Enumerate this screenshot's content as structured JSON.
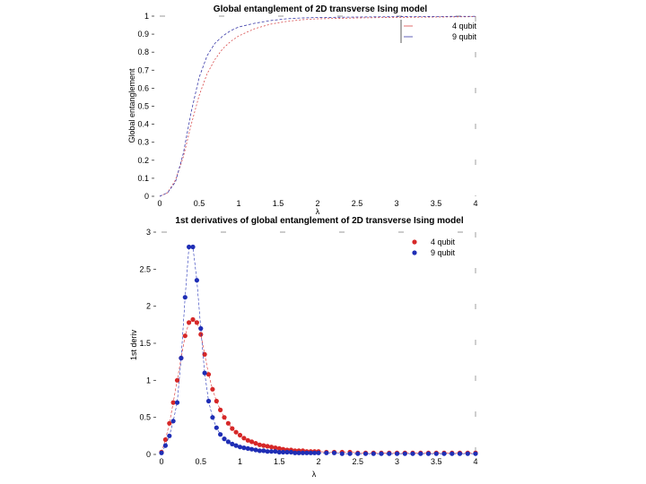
{
  "chart_data": [
    {
      "type": "line",
      "title": "Global entanglement of 2D transverse Ising model",
      "xlabel": "λ",
      "ylabel": "Global entanglement",
      "xlim": [
        0,
        4
      ],
      "ylim": [
        0,
        1
      ],
      "xticks": [
        "0",
        "0.5",
        "1",
        "1.5",
        "2",
        "2.5",
        "3",
        "3.5",
        "4"
      ],
      "yticks": [
        "0",
        "0.1",
        "0.2",
        "0.3",
        "0.4",
        "0.5",
        "0.6",
        "0.7",
        "0.8",
        "0.9",
        "1"
      ],
      "legend_position": "top-right",
      "series": [
        {
          "name": "4 qubit",
          "color": "#d84a4a",
          "x": [
            0,
            0.1,
            0.2,
            0.3,
            0.4,
            0.5,
            0.6,
            0.7,
            0.8,
            0.9,
            1.0,
            1.2,
            1.4,
            1.6,
            1.8,
            2.0,
            2.5,
            3.0,
            3.5,
            4.0
          ],
          "y": [
            0,
            0.02,
            0.09,
            0.22,
            0.4,
            0.56,
            0.68,
            0.76,
            0.82,
            0.86,
            0.89,
            0.93,
            0.955,
            0.97,
            0.98,
            0.985,
            0.99,
            0.993,
            0.995,
            0.997
          ]
        },
        {
          "name": "9 qubit",
          "color": "#3a3aa8",
          "x": [
            0,
            0.1,
            0.2,
            0.3,
            0.4,
            0.5,
            0.6,
            0.7,
            0.8,
            0.9,
            1.0,
            1.2,
            1.4,
            1.6,
            1.8,
            2.0,
            2.5,
            3.0,
            3.5,
            4.0
          ],
          "y": [
            0,
            0.02,
            0.08,
            0.24,
            0.47,
            0.66,
            0.78,
            0.85,
            0.89,
            0.92,
            0.94,
            0.96,
            0.975,
            0.985,
            0.99,
            0.992,
            0.995,
            0.997,
            0.998,
            0.999
          ]
        }
      ]
    },
    {
      "type": "scatter",
      "title": "1st derivatives of global entanglement of 2D transverse Ising model",
      "xlabel": "λ",
      "ylabel": "1st deriv",
      "xlim": [
        0,
        4
      ],
      "ylim": [
        0,
        3
      ],
      "xticks": [
        "0",
        "0.5",
        "1",
        "1.5",
        "2",
        "2.5",
        "3",
        "3.5",
        "4"
      ],
      "yticks": [
        "0",
        "0.5",
        "1",
        "1.5",
        "2",
        "2.5",
        "3"
      ],
      "legend_position": "top-right",
      "series": [
        {
          "name": "4 qubit",
          "color": "#d62828",
          "x": [
            0.0,
            0.05,
            0.1,
            0.15,
            0.2,
            0.25,
            0.3,
            0.35,
            0.4,
            0.45,
            0.5,
            0.55,
            0.6,
            0.65,
            0.7,
            0.75,
            0.8,
            0.85,
            0.9,
            0.95,
            1.0,
            1.05,
            1.1,
            1.15,
            1.2,
            1.25,
            1.3,
            1.35,
            1.4,
            1.45,
            1.5,
            1.55,
            1.6,
            1.65,
            1.7,
            1.75,
            1.8,
            1.85,
            1.9,
            1.95,
            2.0,
            2.1,
            2.2,
            2.3,
            2.4,
            2.5,
            2.6,
            2.7,
            2.8,
            2.9,
            3.0,
            3.1,
            3.2,
            3.3,
            3.4,
            3.5,
            3.6,
            3.7,
            3.8,
            3.9,
            4.0
          ],
          "y": [
            0.03,
            0.2,
            0.42,
            0.7,
            1.0,
            1.3,
            1.6,
            1.78,
            1.82,
            1.78,
            1.62,
            1.35,
            1.08,
            0.88,
            0.72,
            0.6,
            0.5,
            0.42,
            0.35,
            0.3,
            0.26,
            0.22,
            0.19,
            0.17,
            0.15,
            0.13,
            0.12,
            0.11,
            0.1,
            0.09,
            0.08,
            0.07,
            0.06,
            0.06,
            0.05,
            0.05,
            0.05,
            0.04,
            0.04,
            0.04,
            0.04,
            0.03,
            0.03,
            0.03,
            0.03,
            0.02,
            0.02,
            0.02,
            0.02,
            0.02,
            0.02,
            0.02,
            0.02,
            0.02,
            0.02,
            0.02,
            0.02,
            0.02,
            0.02,
            0.02,
            0.02
          ]
        },
        {
          "name": "9 qubit",
          "color": "#1f2eb5",
          "x": [
            0.0,
            0.05,
            0.1,
            0.15,
            0.2,
            0.25,
            0.3,
            0.35,
            0.4,
            0.45,
            0.5,
            0.55,
            0.6,
            0.65,
            0.7,
            0.75,
            0.8,
            0.85,
            0.9,
            0.95,
            1.0,
            1.05,
            1.1,
            1.15,
            1.2,
            1.25,
            1.3,
            1.35,
            1.4,
            1.45,
            1.5,
            1.55,
            1.6,
            1.65,
            1.7,
            1.75,
            1.8,
            1.85,
            1.9,
            1.95,
            2.0,
            2.1,
            2.2,
            2.3,
            2.4,
            2.5,
            2.6,
            2.7,
            2.8,
            2.9,
            3.0,
            3.1,
            3.2,
            3.3,
            3.4,
            3.5,
            3.6,
            3.7,
            3.8,
            3.9,
            4.0
          ],
          "y": [
            0.02,
            0.12,
            0.25,
            0.45,
            0.7,
            1.3,
            2.12,
            2.8,
            2.8,
            2.35,
            1.7,
            1.1,
            0.72,
            0.5,
            0.36,
            0.27,
            0.21,
            0.17,
            0.14,
            0.12,
            0.1,
            0.09,
            0.08,
            0.07,
            0.06,
            0.05,
            0.05,
            0.04,
            0.04,
            0.04,
            0.03,
            0.03,
            0.03,
            0.03,
            0.02,
            0.02,
            0.02,
            0.02,
            0.02,
            0.02,
            0.02,
            0.02,
            0.02,
            0.01,
            0.01,
            0.01,
            0.01,
            0.01,
            0.01,
            0.01,
            0.01,
            0.01,
            0.01,
            0.01,
            0.01,
            0.01,
            0.01,
            0.01,
            0.01,
            0.01,
            0.01
          ]
        }
      ]
    }
  ]
}
